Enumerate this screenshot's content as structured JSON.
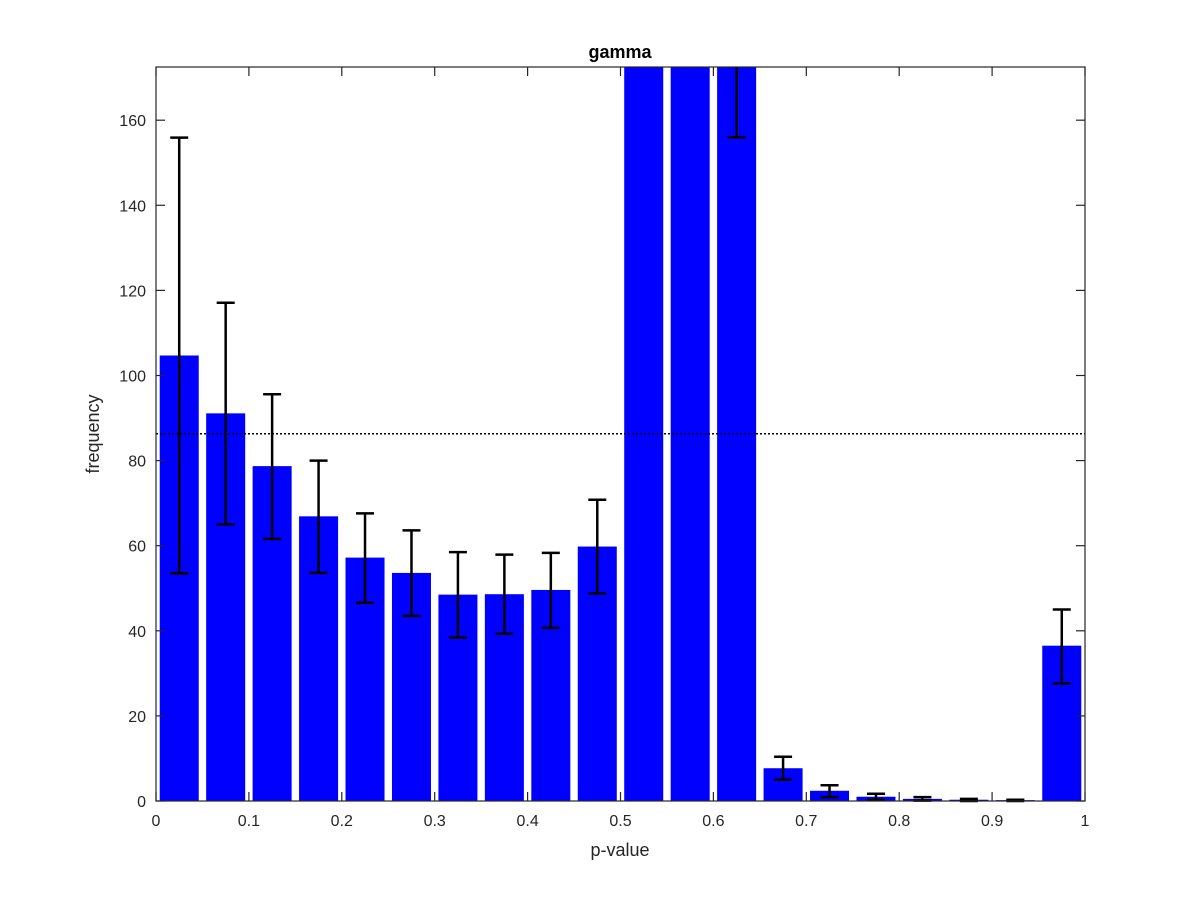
{
  "chart_data": {
    "type": "bar",
    "title": "gamma",
    "xlabel": "p-value",
    "ylabel": "frequency",
    "xlim": [
      0,
      1
    ],
    "ylim": [
      0,
      172.5
    ],
    "grid": false,
    "legend": "none",
    "bar_color": "#0000ff",
    "errorbar_color": "#000000",
    "reference_line": {
      "y": 86.3,
      "style": "dotted",
      "color": "#000000"
    },
    "x": [
      0.025,
      0.075,
      0.125,
      0.175,
      0.225,
      0.275,
      0.325,
      0.375,
      0.425,
      0.475,
      0.525,
      0.575,
      0.625,
      0.675,
      0.725,
      0.775,
      0.825,
      0.875,
      0.925,
      0.975
    ],
    "values": [
      104.7,
      91.1,
      78.7,
      66.9,
      57.2,
      53.6,
      48.5,
      48.6,
      49.6,
      59.8,
      172.5,
      172.5,
      172.5,
      7.7,
      2.4,
      1.0,
      0.5,
      0.3,
      0.2,
      36.5
    ],
    "err_low": [
      53.5,
      65.0,
      61.6,
      53.6,
      46.6,
      43.5,
      38.4,
      39.3,
      40.7,
      48.8,
      null,
      null,
      156.0,
      5.0,
      0.9,
      0.3,
      0.1,
      0.0,
      0.0,
      27.6
    ],
    "err_high": [
      155.9,
      117.1,
      95.6,
      80.0,
      67.6,
      63.6,
      58.5,
      57.9,
      58.3,
      70.8,
      null,
      null,
      172.5,
      10.4,
      3.7,
      1.7,
      0.9,
      0.5,
      0.3,
      45.0
    ],
    "xticks": [
      0,
      0.1,
      0.2,
      0.3,
      0.4,
      0.5,
      0.6,
      0.7,
      0.8,
      0.9,
      1
    ],
    "xtick_labels": [
      "0",
      "0.1",
      "0.2",
      "0.3",
      "0.4",
      "0.5",
      "0.6",
      "0.7",
      "0.8",
      "0.9",
      "1"
    ],
    "yticks": [
      0,
      20,
      40,
      60,
      80,
      100,
      120,
      140,
      160
    ],
    "ytick_labels": [
      "0",
      "20",
      "40",
      "60",
      "80",
      "100",
      "120",
      "140",
      "160"
    ]
  }
}
